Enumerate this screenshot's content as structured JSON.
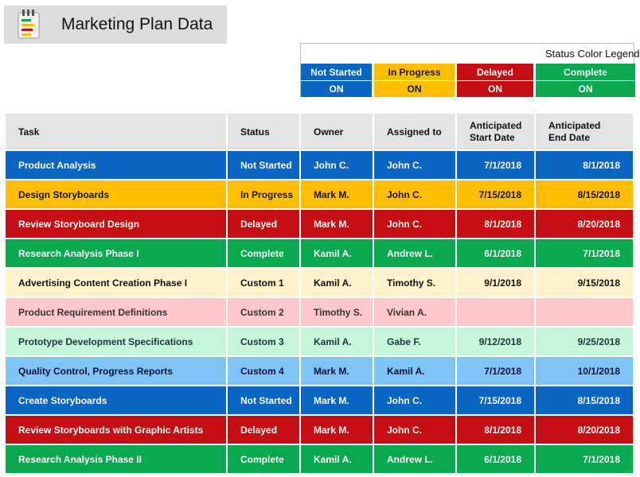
{
  "title": "Marketing Plan Data",
  "legend": {
    "title": "Status Color Legend",
    "items": [
      {
        "label": "Not Started",
        "value": "ON",
        "color": "#0a66c2"
      },
      {
        "label": "In Progress",
        "value": "ON",
        "color": "#ffbf00"
      },
      {
        "label": "Delayed",
        "value": "ON",
        "color": "#c50f14"
      },
      {
        "label": "Complete",
        "value": "ON",
        "color": "#0aa84f"
      }
    ]
  },
  "table": {
    "headers": [
      "Task",
      "Status",
      "Owner",
      "Assigned to",
      "Anticipated Start Date",
      "Anticipated End Date"
    ],
    "header_lines": {
      "start": [
        "Anticipated",
        "Start Date"
      ],
      "end": [
        "Anticipated",
        "End Date"
      ]
    },
    "rows": [
      {
        "task": "Product Analysis",
        "status": "Not Started",
        "owner": "John C.",
        "assigned": "John C.",
        "start": "7/1/2018",
        "end": "8/1/2018",
        "style": "ns"
      },
      {
        "task": "Design Storyboards",
        "status": "In Progress",
        "owner": "Mark M.",
        "assigned": "John C.",
        "start": "7/15/2018",
        "end": "8/15/2018",
        "style": "ip"
      },
      {
        "task": "Review Storyboard Design",
        "status": "Delayed",
        "owner": "Mark M.",
        "assigned": "John C.",
        "start": "8/1/2018",
        "end": "8/20/2018",
        "style": "dl"
      },
      {
        "task": "Research Analysis Phase I",
        "status": "Complete",
        "owner": "Kamil A.",
        "assigned": "Andrew L.",
        "start": "6/1/2018",
        "end": "7/1/2018",
        "style": "cp"
      },
      {
        "task": "Advertising Content Creation Phase I",
        "status": "Custom 1",
        "owner": "Kamil A.",
        "assigned": "Timothy S.",
        "start": "9/1/2018",
        "end": "9/15/2018",
        "style": "c1"
      },
      {
        "task": "Product Requirement Definitions",
        "status": "Custom 2",
        "owner": "Timothy S.",
        "assigned": "Vivian A.",
        "start": "",
        "end": "",
        "style": "c2"
      },
      {
        "task": "Prototype Development Specifications",
        "status": "Custom 3",
        "owner": "Kamil A.",
        "assigned": "Gabe F.",
        "start": "9/12/2018",
        "end": "9/25/2018",
        "style": "c3"
      },
      {
        "task": "Quality Control, Progress Reports",
        "status": "Custom 4",
        "owner": "Mark M.",
        "assigned": "Kamil A.",
        "start": "7/1/2018",
        "end": "10/1/2018",
        "style": "c4"
      },
      {
        "task": "Create Storyboards",
        "status": "Not Started",
        "owner": "Mark M.",
        "assigned": "John C.",
        "start": "7/15/2018",
        "end": "8/15/2018",
        "style": "ns"
      },
      {
        "task": "Review Storyboards with Graphic Artists",
        "status": "Delayed",
        "owner": "Mark M.",
        "assigned": "John C.",
        "start": "8/1/2018",
        "end": "8/20/2018",
        "style": "dl"
      },
      {
        "task": "Research Analysis Phase II",
        "status": "Complete",
        "owner": "Kamil A.",
        "assigned": "Andrew L.",
        "start": "6/1/2018",
        "end": "7/1/2018",
        "style": "cp"
      }
    ]
  },
  "icon": "checklist-icon"
}
